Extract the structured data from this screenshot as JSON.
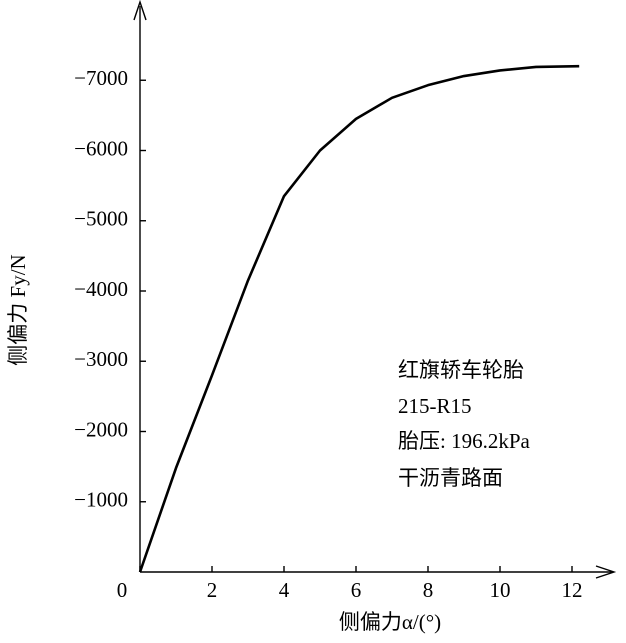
{
  "chart_data": {
    "type": "line",
    "xlabel": "侧偏力α/(°)",
    "ylabel": "侧偏力 Fy/N",
    "annotations": [
      "红旗轿车轮胎",
      "215-R15",
      "胎压: 196.2kPa",
      "干沥青路面"
    ],
    "x": [
      0,
      1,
      2,
      3,
      4,
      5,
      6,
      7,
      8,
      9,
      10,
      11,
      12.2
    ],
    "series": [
      {
        "color": "#000000",
        "values": [
          0,
          -1480,
          -2800,
          -4150,
          -5350,
          -6000,
          -6450,
          -6750,
          -6930,
          -7060,
          -7140,
          -7190,
          -7200
        ]
      }
    ],
    "xlim": [
      0,
      13
    ],
    "ylim": [
      0,
      -8000
    ],
    "xticks": [
      0,
      2,
      4,
      6,
      8,
      10,
      12
    ],
    "yticks": [
      {
        "value": -1000,
        "label": "−1000"
      },
      {
        "value": -2000,
        "label": "−2000"
      },
      {
        "value": -3000,
        "label": "−3000"
      },
      {
        "value": -4000,
        "label": "−4000"
      },
      {
        "value": -5000,
        "label": "−5000"
      },
      {
        "value": -6000,
        "label": "−6000"
      },
      {
        "value": -7000,
        "label": "−7000"
      }
    ]
  }
}
